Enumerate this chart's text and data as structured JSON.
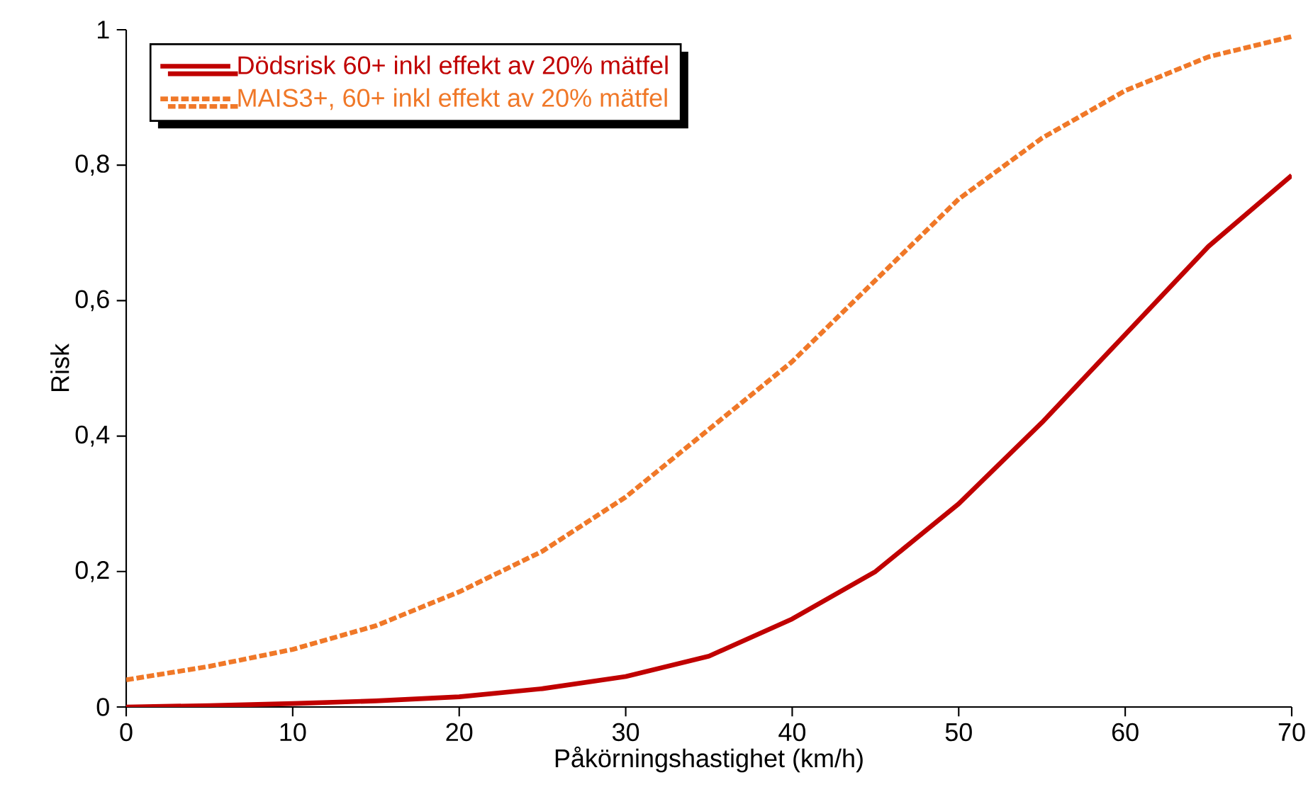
{
  "chart_data": {
    "type": "line",
    "xlabel": "Påkörningshastighet (km/h)",
    "ylabel": "Risk",
    "x": [
      0,
      5,
      10,
      15,
      20,
      25,
      30,
      35,
      40,
      45,
      50,
      55,
      60,
      65,
      70
    ],
    "series": [
      {
        "name": "Dödsrisk 60+ inkl effekt av 20% mätfel",
        "color": "#c00000",
        "line_style": "solid",
        "values": [
          0.0,
          0.002,
          0.005,
          0.009,
          0.015,
          0.027,
          0.045,
          0.075,
          0.13,
          0.2,
          0.3,
          0.42,
          0.55,
          0.68,
          0.785
        ]
      },
      {
        "name": "MAIS3+, 60+ inkl effekt av 20% mätfel",
        "color": "#f07828",
        "line_style": "dashed",
        "values": [
          0.04,
          0.06,
          0.085,
          0.12,
          0.17,
          0.23,
          0.31,
          0.41,
          0.51,
          0.63,
          0.75,
          0.84,
          0.91,
          0.96,
          0.99
        ]
      }
    ],
    "xlim": [
      0,
      70
    ],
    "ylim": [
      0,
      1
    ],
    "xticks": [
      0,
      10,
      20,
      30,
      40,
      50,
      60,
      70
    ],
    "yticks": [
      0,
      {
        "value": 0.2,
        "label": "0,2"
      },
      {
        "value": 0.4,
        "label": "0,4"
      },
      {
        "value": 0.6,
        "label": "0,6"
      },
      {
        "value": 0.8,
        "label": "0,8"
      },
      1
    ],
    "grid": false,
    "legend": "top left",
    "marker": "none"
  }
}
